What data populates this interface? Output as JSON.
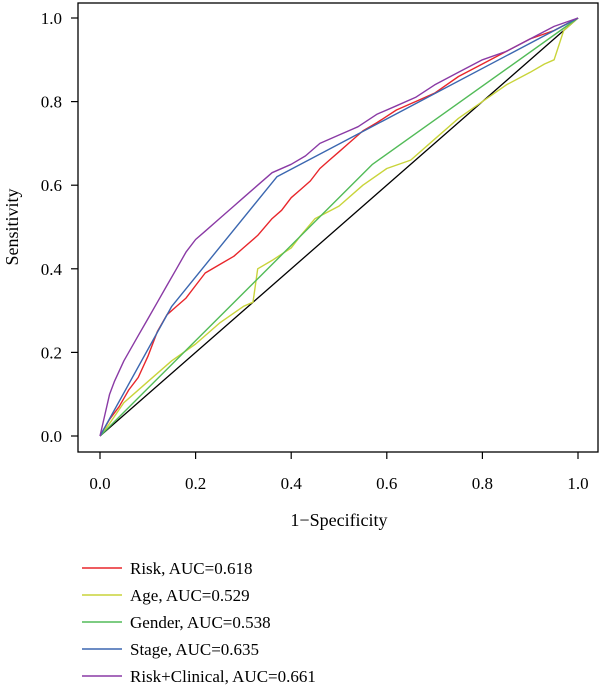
{
  "chart_data": {
    "type": "line",
    "title": "",
    "xlabel": "1−Specificity",
    "ylabel": "Sensitivity",
    "xlim": [
      0,
      1
    ],
    "ylim": [
      0,
      1
    ],
    "x_ticks": [
      "0.0",
      "0.2",
      "0.4",
      "0.6",
      "0.8",
      "1.0"
    ],
    "y_ticks": [
      "0.0",
      "0.2",
      "0.4",
      "0.6",
      "0.8",
      "1.0"
    ],
    "grid": false,
    "legend_position": "bottom-left, below plot",
    "reference_line": {
      "from": [
        0,
        0
      ],
      "to": [
        1,
        1
      ],
      "color": "#000000"
    },
    "series": [
      {
        "name": "Risk, AUC=0.618",
        "color": "#e8262b",
        "points": [
          [
            0,
            0
          ],
          [
            0.02,
            0.04
          ],
          [
            0.04,
            0.07
          ],
          [
            0.06,
            0.11
          ],
          [
            0.08,
            0.14
          ],
          [
            0.1,
            0.19
          ],
          [
            0.12,
            0.25
          ],
          [
            0.14,
            0.29
          ],
          [
            0.16,
            0.31
          ],
          [
            0.18,
            0.33
          ],
          [
            0.2,
            0.36
          ],
          [
            0.22,
            0.39
          ],
          [
            0.25,
            0.41
          ],
          [
            0.28,
            0.43
          ],
          [
            0.3,
            0.45
          ],
          [
            0.33,
            0.48
          ],
          [
            0.36,
            0.52
          ],
          [
            0.38,
            0.54
          ],
          [
            0.4,
            0.57
          ],
          [
            0.42,
            0.59
          ],
          [
            0.44,
            0.61
          ],
          [
            0.46,
            0.64
          ],
          [
            0.48,
            0.66
          ],
          [
            0.5,
            0.68
          ],
          [
            0.52,
            0.7
          ],
          [
            0.55,
            0.73
          ],
          [
            0.58,
            0.75
          ],
          [
            0.62,
            0.78
          ],
          [
            0.66,
            0.8
          ],
          [
            0.7,
            0.82
          ],
          [
            0.75,
            0.86
          ],
          [
            0.8,
            0.89
          ],
          [
            0.85,
            0.92
          ],
          [
            0.9,
            0.95
          ],
          [
            0.95,
            0.97
          ],
          [
            1,
            1
          ]
        ]
      },
      {
        "name": "Age, AUC=0.529",
        "color": "#c9d43a",
        "points": [
          [
            0,
            0
          ],
          [
            0.02,
            0.03
          ],
          [
            0.05,
            0.08
          ],
          [
            0.1,
            0.13
          ],
          [
            0.15,
            0.18
          ],
          [
            0.2,
            0.22
          ],
          [
            0.25,
            0.27
          ],
          [
            0.3,
            0.31
          ],
          [
            0.32,
            0.32
          ],
          [
            0.33,
            0.4
          ],
          [
            0.36,
            0.42
          ],
          [
            0.4,
            0.45
          ],
          [
            0.42,
            0.48
          ],
          [
            0.45,
            0.52
          ],
          [
            0.5,
            0.55
          ],
          [
            0.55,
            0.6
          ],
          [
            0.6,
            0.64
          ],
          [
            0.65,
            0.66
          ],
          [
            0.7,
            0.71
          ],
          [
            0.75,
            0.76
          ],
          [
            0.8,
            0.8
          ],
          [
            0.85,
            0.84
          ],
          [
            0.9,
            0.87
          ],
          [
            0.93,
            0.89
          ],
          [
            0.95,
            0.9
          ],
          [
            0.97,
            0.97
          ],
          [
            1,
            1
          ]
        ]
      },
      {
        "name": "Gender, AUC=0.538",
        "color": "#52bb58",
        "points": [
          [
            0,
            0
          ],
          [
            0.57,
            0.65
          ],
          [
            1,
            1
          ]
        ]
      },
      {
        "name": "Stage, AUC=0.635",
        "color": "#3b67b0",
        "points": [
          [
            0,
            0
          ],
          [
            0.15,
            0.31
          ],
          [
            0.37,
            0.62
          ],
          [
            1,
            1
          ]
        ]
      },
      {
        "name": "Risk+Clinical, AUC=0.661",
        "color": "#8a3aa5",
        "points": [
          [
            0,
            0
          ],
          [
            0.01,
            0.05
          ],
          [
            0.02,
            0.1
          ],
          [
            0.03,
            0.13
          ],
          [
            0.05,
            0.18
          ],
          [
            0.08,
            0.24
          ],
          [
            0.1,
            0.28
          ],
          [
            0.12,
            0.32
          ],
          [
            0.14,
            0.36
          ],
          [
            0.16,
            0.4
          ],
          [
            0.18,
            0.44
          ],
          [
            0.2,
            0.47
          ],
          [
            0.22,
            0.49
          ],
          [
            0.25,
            0.52
          ],
          [
            0.28,
            0.55
          ],
          [
            0.3,
            0.57
          ],
          [
            0.33,
            0.6
          ],
          [
            0.36,
            0.63
          ],
          [
            0.4,
            0.65
          ],
          [
            0.43,
            0.67
          ],
          [
            0.46,
            0.7
          ],
          [
            0.5,
            0.72
          ],
          [
            0.54,
            0.74
          ],
          [
            0.58,
            0.77
          ],
          [
            0.62,
            0.79
          ],
          [
            0.66,
            0.81
          ],
          [
            0.7,
            0.84
          ],
          [
            0.75,
            0.87
          ],
          [
            0.8,
            0.9
          ],
          [
            0.85,
            0.92
          ],
          [
            0.9,
            0.95
          ],
          [
            0.95,
            0.98
          ],
          [
            1,
            1
          ]
        ]
      }
    ]
  }
}
